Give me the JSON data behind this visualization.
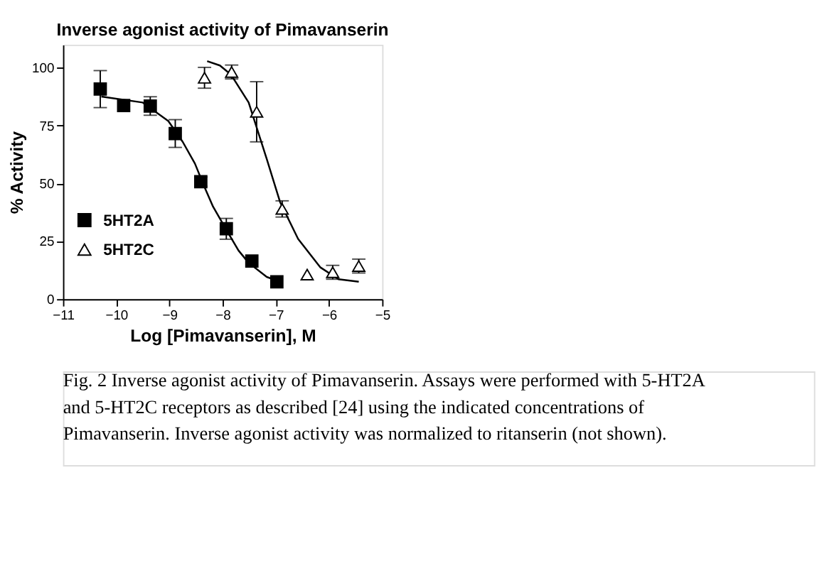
{
  "chart_data": {
    "type": "scatter",
    "title": "Inverse agonist activity of Pimavanserin",
    "xlabel": "Log [Pimavanserin], M",
    "ylabel": "% Activity",
    "xlim": [
      -11,
      -5
    ],
    "xticks": [
      -11,
      -10,
      -9,
      -8,
      -7,
      -6,
      -5
    ],
    "ylim": [
      0,
      110
    ],
    "yticks": [
      0,
      25,
      50,
      75,
      100
    ],
    "grid": false,
    "legend": "bottom left",
    "series": [
      {
        "name": "5HT2A",
        "color": "#000000",
        "marker": "square",
        "x": [
          -10.3,
          -9.86,
          -9.36,
          -8.89,
          -8.41,
          -7.93,
          -7.45,
          -6.98
        ],
        "values": [
          90.8,
          83.7,
          83.5,
          71.6,
          50.8,
          30.4,
          16.5,
          7.5
        ],
        "errors": [
          8,
          null,
          4,
          6,
          2,
          4.5,
          null,
          null
        ]
      },
      {
        "name": "5HT2C",
        "color": "#000000",
        "marker": "triangle",
        "x": [
          -8.34,
          -7.83,
          -7.36,
          -6.88,
          -6.41,
          -5.93,
          -5.44
        ],
        "values": [
          95.7,
          98.2,
          81,
          39,
          10.6,
          11.6,
          14.3
        ],
        "errors": [
          4.5,
          3,
          13,
          3.5,
          null,
          3,
          3
        ]
      },
      {
        "type": "line",
        "color": "#000000",
        "marker": "none",
        "x": [
          -10.28,
          -9.5,
          -9.02,
          -8.75,
          -8.52,
          -8.35,
          -8.18,
          -7.93,
          -7.7,
          -7.51,
          -7.17,
          -6.92
        ],
        "values": [
          87.6,
          85,
          77,
          68,
          58.6,
          49,
          40,
          30,
          21,
          15.7,
          9.6,
          7.5
        ]
      },
      {
        "type": "line",
        "color": "#000000",
        "marker": "none",
        "x": [
          -8.29,
          -8.05,
          -7.84,
          -7.51,
          -7.17,
          -6.92,
          -6.58,
          -6.16,
          -5.82,
          -5.44
        ],
        "values": [
          102.9,
          101,
          97,
          85,
          60.6,
          42,
          26,
          13.7,
          8.6,
          7.5
        ]
      }
    ],
    "annotations": [
      "Fig. 2 Inverse agonist activity of Pimavanserin. Assays were performed with 5-HT2A and 5-HT2C receptors as described [24] using the indicated concentrations of Pimavanserin. Inverse agonist activity was normalized to ritanserin (not shown)."
    ]
  }
}
